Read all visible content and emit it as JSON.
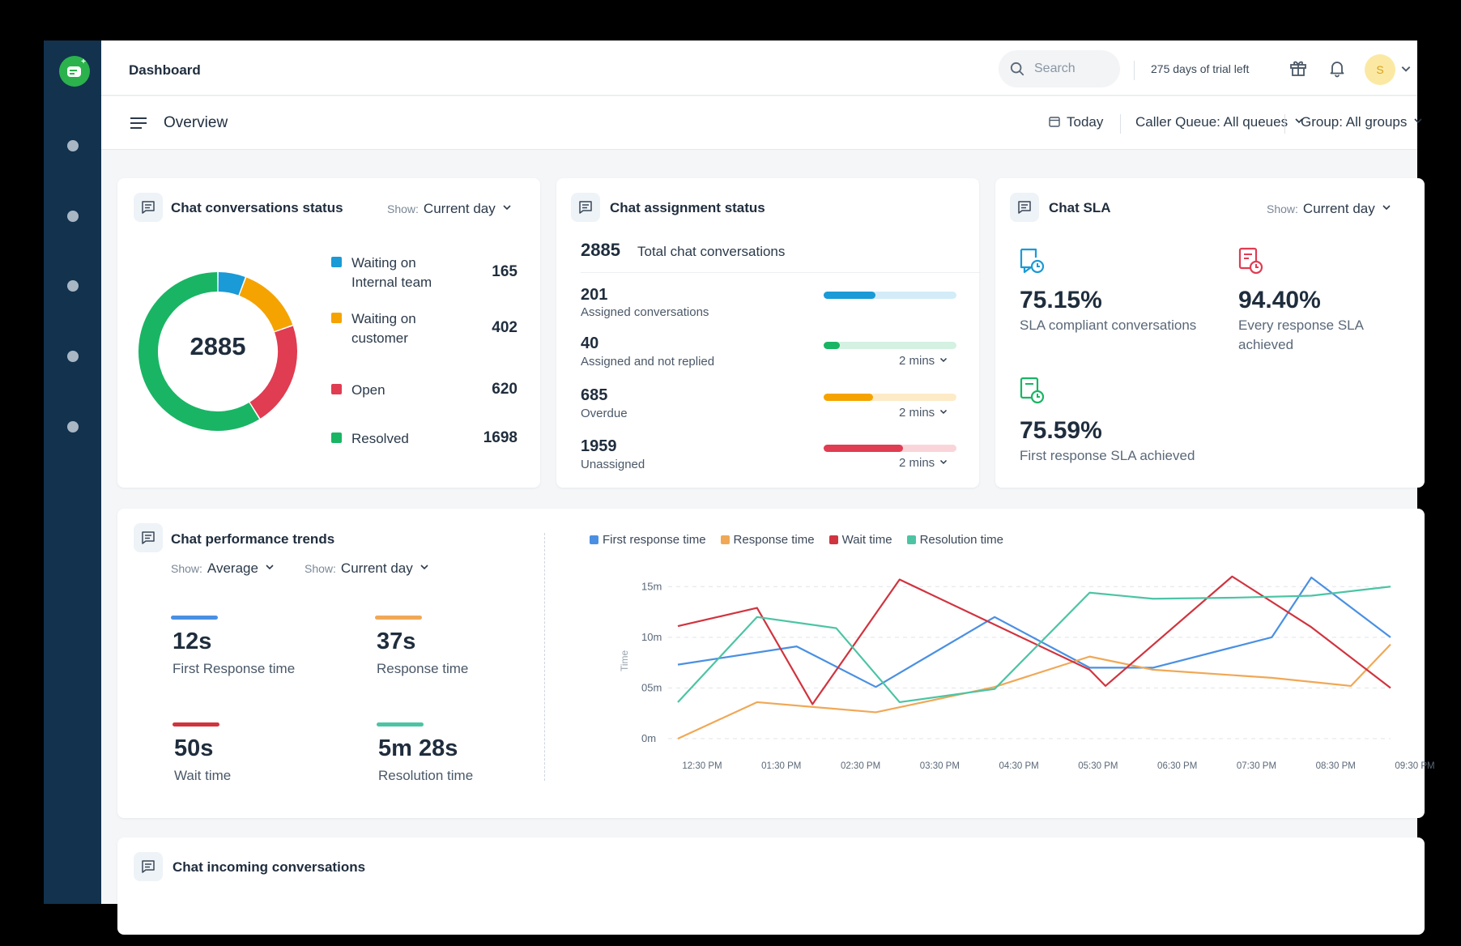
{
  "topbar": {
    "title": "Dashboard",
    "search_placeholder": "Search",
    "trial_text": "275 days of trial left",
    "avatar_initial": "S"
  },
  "subbar": {
    "title": "Overview",
    "date_filter": "Today",
    "queue_filter": "Caller Queue: All queues",
    "group_filter": "Group: All groups"
  },
  "status_card": {
    "title": "Chat conversations status",
    "show_label": "Show:",
    "show_value": "Current day",
    "total": "2885",
    "items": [
      {
        "label": "Waiting on Internal team",
        "value": "165",
        "color": "#1a9ad6"
      },
      {
        "label": "Waiting on customer",
        "value": "402",
        "color": "#f5a300"
      },
      {
        "label": "Open",
        "value": "620",
        "color": "#e03c52"
      },
      {
        "label": "Resolved",
        "value": "1698",
        "color": "#19b564"
      }
    ]
  },
  "assignment_card": {
    "title": "Chat assignment status",
    "total": "2885",
    "total_label": "Total chat conversations",
    "rows": [
      {
        "value": "201",
        "label": "Assigned conversations",
        "fraction": 0.39,
        "color": "#1a9ad6",
        "track": "#d3ecf8",
        "mins": ""
      },
      {
        "value": "40",
        "label": "Assigned and not replied",
        "fraction": 0.12,
        "color": "#19b564",
        "track": "#d4f1e2",
        "mins": "2 mins"
      },
      {
        "value": "685",
        "label": "Overdue",
        "fraction": 0.37,
        "color": "#f5a300",
        "track": "#fdebc8",
        "mins": "2 mins"
      },
      {
        "value": "1959",
        "label": "Unassigned",
        "fraction": 0.6,
        "color": "#e03c52",
        "track": "#f9d5da",
        "mins": "2 mins"
      }
    ]
  },
  "sla_card": {
    "title": "Chat SLA",
    "show_label": "Show:",
    "show_value": "Current day",
    "items": [
      {
        "value": "75.15%",
        "label": "SLA compliant conversations",
        "color": "#1a9ad6"
      },
      {
        "value": "94.40%",
        "label": "Every response SLA achieved",
        "color": "#e03c52"
      },
      {
        "value": "75.59%",
        "label": "First response SLA achieved",
        "color": "#19b564"
      }
    ]
  },
  "performance_card": {
    "title": "Chat performance trends",
    "show_label": "Show:",
    "show_average": "Average",
    "show_period": "Current day",
    "metrics": [
      {
        "value": "12s",
        "label": "First Response time",
        "color": "#4a90e2"
      },
      {
        "value": "37s",
        "label": "Response time",
        "color": "#f0a856"
      },
      {
        "value": "50s",
        "label": "Wait time",
        "color": "#d0343f"
      },
      {
        "value": "5m 28s",
        "label": "Resolution time",
        "color": "#4cc4a4"
      }
    ]
  },
  "incoming_card": {
    "title": "Chat incoming conversations"
  },
  "chart_data": {
    "type": "line",
    "title": "",
    "xlabel": "",
    "ylabel": "Time",
    "ylim": [
      0,
      15.5
    ],
    "yticks": [
      0,
      5,
      10,
      15
    ],
    "ytick_labels": [
      "0m",
      "05m",
      "10m",
      "15m"
    ],
    "x": [
      "12:30 PM",
      "01:30 PM",
      "02:30 PM",
      "03:30 PM",
      "04:30 PM",
      "05:30 PM",
      "06:30 PM",
      "07:30 PM",
      "08:30 PM",
      "09:30 PM"
    ],
    "x_positions": [
      0,
      1,
      2,
      3,
      4,
      5,
      6,
      7,
      8,
      9
    ],
    "grid": true,
    "legend": "top-left",
    "series": [
      {
        "name": "First response time",
        "color": "#4a90e2",
        "x": [
          0,
          1.5,
          2.5,
          4.0,
          5.2,
          6.0,
          7.5,
          8.0,
          9.0
        ],
        "values": [
          7.3,
          9.1,
          5.1,
          12.0,
          7.0,
          7.0,
          10.0,
          15.9,
          10.0
        ]
      },
      {
        "name": "Response time",
        "color": "#f0a856",
        "x": [
          0,
          1.0,
          2.5,
          4.0,
          5.2,
          6.0,
          7.5,
          8.5,
          9.0
        ],
        "values": [
          0.0,
          3.6,
          2.6,
          5.1,
          8.1,
          6.8,
          6.0,
          5.2,
          9.3
        ]
      },
      {
        "name": "Wait time",
        "color": "#d0343f",
        "x": [
          0,
          1.0,
          1.7,
          2.8,
          5.2,
          5.4,
          7.0,
          8.0,
          9.0
        ],
        "values": [
          11.1,
          12.9,
          3.4,
          15.7,
          6.8,
          5.2,
          16.0,
          11.0,
          5.0
        ]
      },
      {
        "name": "Resolution time",
        "color": "#4cc4a4",
        "x": [
          0,
          1.0,
          2.0,
          2.8,
          4.0,
          5.2,
          6.0,
          7.0,
          8.0,
          9.0
        ],
        "values": [
          3.6,
          12.0,
          10.9,
          3.6,
          4.9,
          14.4,
          13.8,
          13.9,
          14.1,
          15.0
        ]
      }
    ]
  }
}
